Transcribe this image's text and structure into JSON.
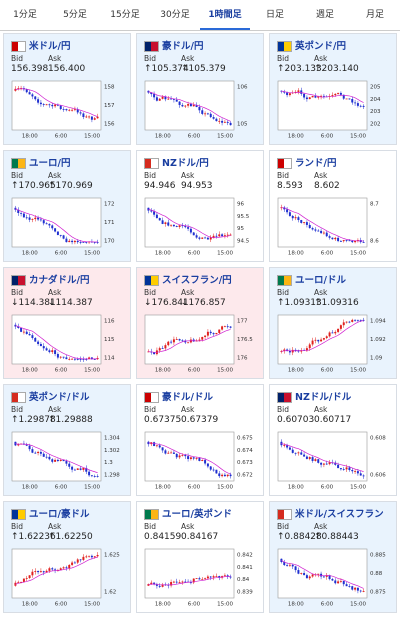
{
  "tabs": [
    "1分足",
    "5分足",
    "15分足",
    "30分足",
    "1時間足",
    "日足",
    "週足",
    "月足"
  ],
  "active_tab": 4,
  "labels": {
    "bid": "Bid",
    "ask": "Ask"
  },
  "chart_xlabels": [
    "18:00",
    "6:00",
    "15:00"
  ],
  "cards": [
    {
      "pair": "米ドル/円",
      "bid": "156.398",
      "ask": "156.400",
      "yaxis": [
        "158",
        "157",
        "156"
      ],
      "tone": "blue",
      "trend": "down"
    },
    {
      "pair": "豪ドル/円",
      "bid": "↑105.374",
      "ask": "↑105.379",
      "yaxis": [
        "106",
        "105"
      ],
      "tone": "blue",
      "trend": "down"
    },
    {
      "pair": "英ポンド/円",
      "bid": "↑203.133",
      "ask": "↑203.140",
      "yaxis": [
        "205",
        "204",
        "203",
        "202"
      ],
      "tone": "blue",
      "trend": "down"
    },
    {
      "pair": "ユーロ/円",
      "bid": "↑170.965",
      "ask": "↑170.969",
      "yaxis": [
        "172",
        "171",
        "170"
      ],
      "tone": "blue",
      "trend": "down"
    },
    {
      "pair": "NZドル/円",
      "bid": "94.946",
      "ask": "94.953",
      "yaxis": [
        "96",
        "95.5",
        "95",
        "94.5"
      ],
      "tone": "white",
      "trend": "down"
    },
    {
      "pair": "ランド/円",
      "bid": "8.593",
      "ask": "8.602",
      "yaxis": [
        "8.7",
        "8.6"
      ],
      "tone": "white",
      "trend": "down"
    },
    {
      "pair": "カナダドル/円",
      "bid": "↓114.381",
      "ask": "↓114.387",
      "yaxis": [
        "116",
        "115",
        "114"
      ],
      "tone": "pink",
      "trend": "down"
    },
    {
      "pair": "スイスフラン/円",
      "bid": "↓176.841",
      "ask": "↓176.857",
      "yaxis": [
        "177",
        "176.5",
        "176"
      ],
      "tone": "pink",
      "trend": "up"
    },
    {
      "pair": "ユーロ/ドル",
      "bid": "↑1.09313",
      "ask": "↑1.09316",
      "yaxis": [
        "1.094",
        "1.092",
        "1.09"
      ],
      "tone": "blue",
      "trend": "up"
    },
    {
      "pair": "英ポンド/ドル",
      "bid": "↑1.29878",
      "ask": "↑1.29888",
      "yaxis": [
        "1.304",
        "1.302",
        "1.3",
        "1.298"
      ],
      "tone": "blue",
      "trend": "down"
    },
    {
      "pair": "豪ドル/ドル",
      "bid": "0.67375",
      "ask": "0.67379",
      "yaxis": [
        "0.675",
        "0.674",
        "0.673",
        "0.672"
      ],
      "tone": "white",
      "trend": "down"
    },
    {
      "pair": "NZドル/ドル",
      "bid": "0.60703",
      "ask": "0.60717",
      "yaxis": [
        "0.608",
        "0.606"
      ],
      "tone": "white",
      "trend": "down"
    },
    {
      "pair": "ユーロ/豪ドル",
      "bid": "↑1.62236",
      "ask": "↑1.62250",
      "yaxis": [
        "1.625",
        "1.62"
      ],
      "tone": "blue",
      "trend": "up"
    },
    {
      "pair": "ユーロ/英ポンド",
      "bid": "0.84159",
      "ask": "0.84167",
      "yaxis": [
        "0.842",
        "0.841",
        "0.84",
        "0.839"
      ],
      "tone": "white",
      "trend": "up"
    },
    {
      "pair": "米ドル/スイスフラン",
      "bid": "↑0.88428",
      "ask": "↑0.88443",
      "yaxis": [
        "0.885",
        "0.88",
        "0.875"
      ],
      "tone": "blue",
      "trend": "down"
    }
  ]
}
